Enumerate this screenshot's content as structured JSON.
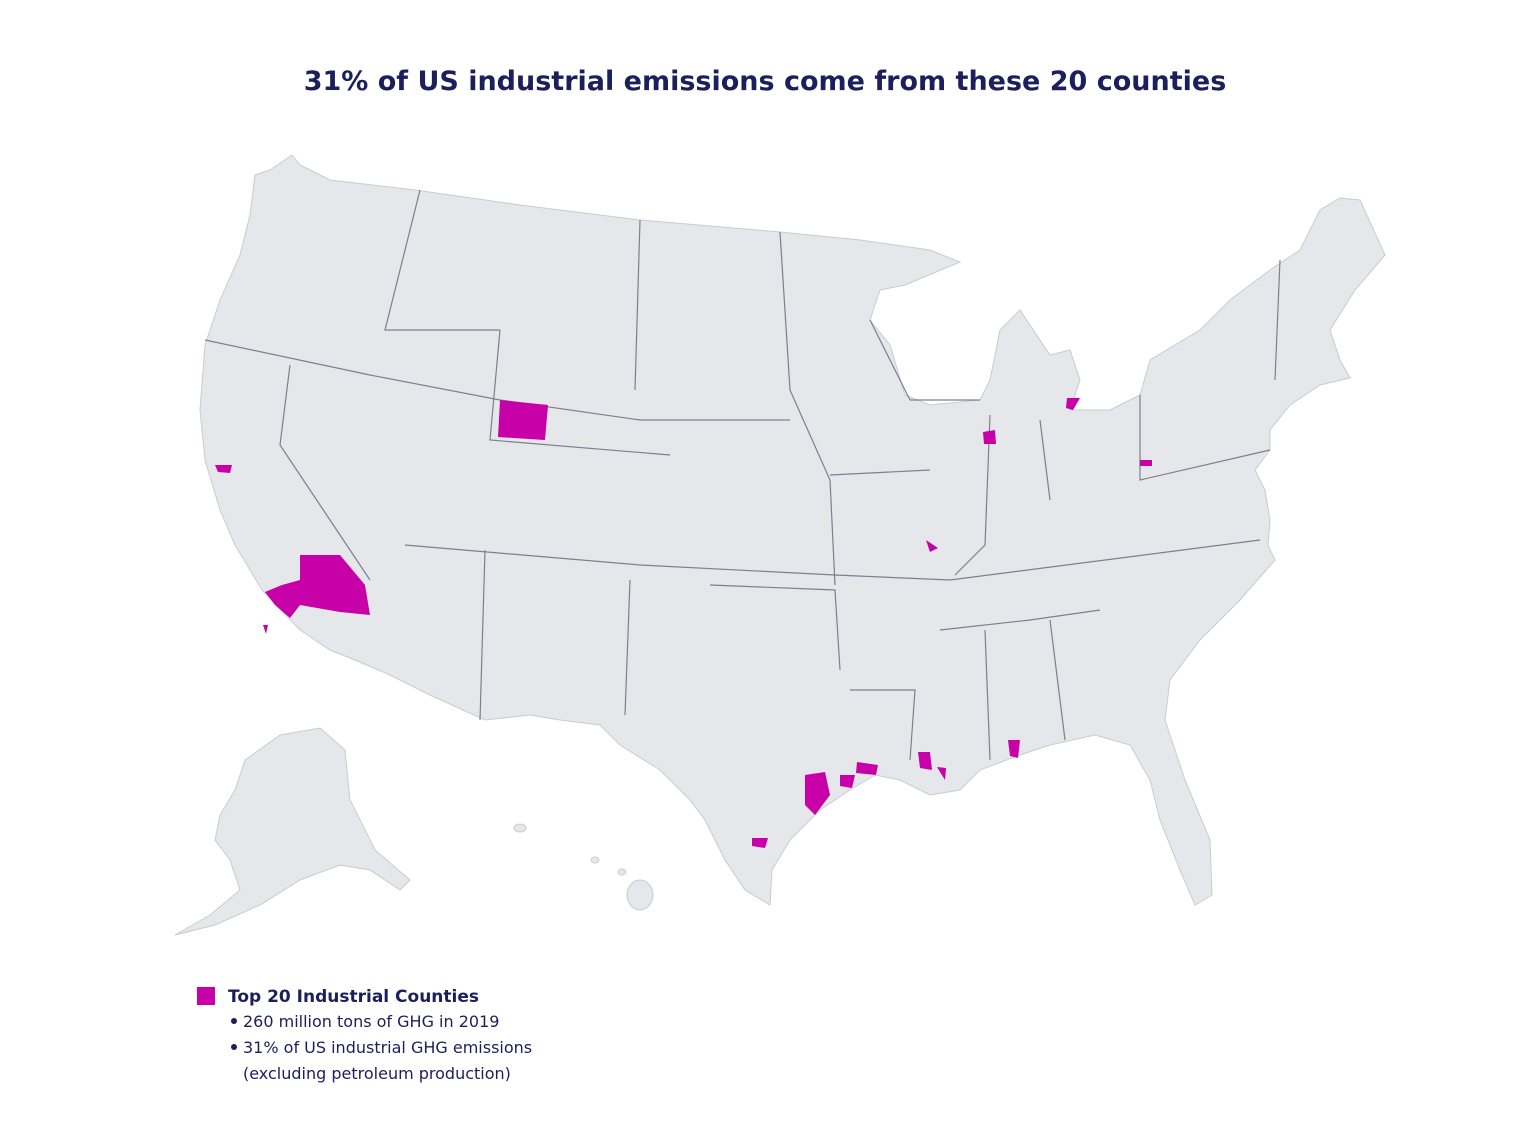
{
  "title": "31% of US industrial emissions come from these 20 counties",
  "legend": {
    "label": "Top 20 Industrial Counties",
    "color": "#c800a8",
    "bullets": [
      [
        "260 million tons of GHG in 2019"
      ],
      [
        "31% of US industrial GHG emissions",
        "(excluding petroleum production)"
      ]
    ]
  }
}
